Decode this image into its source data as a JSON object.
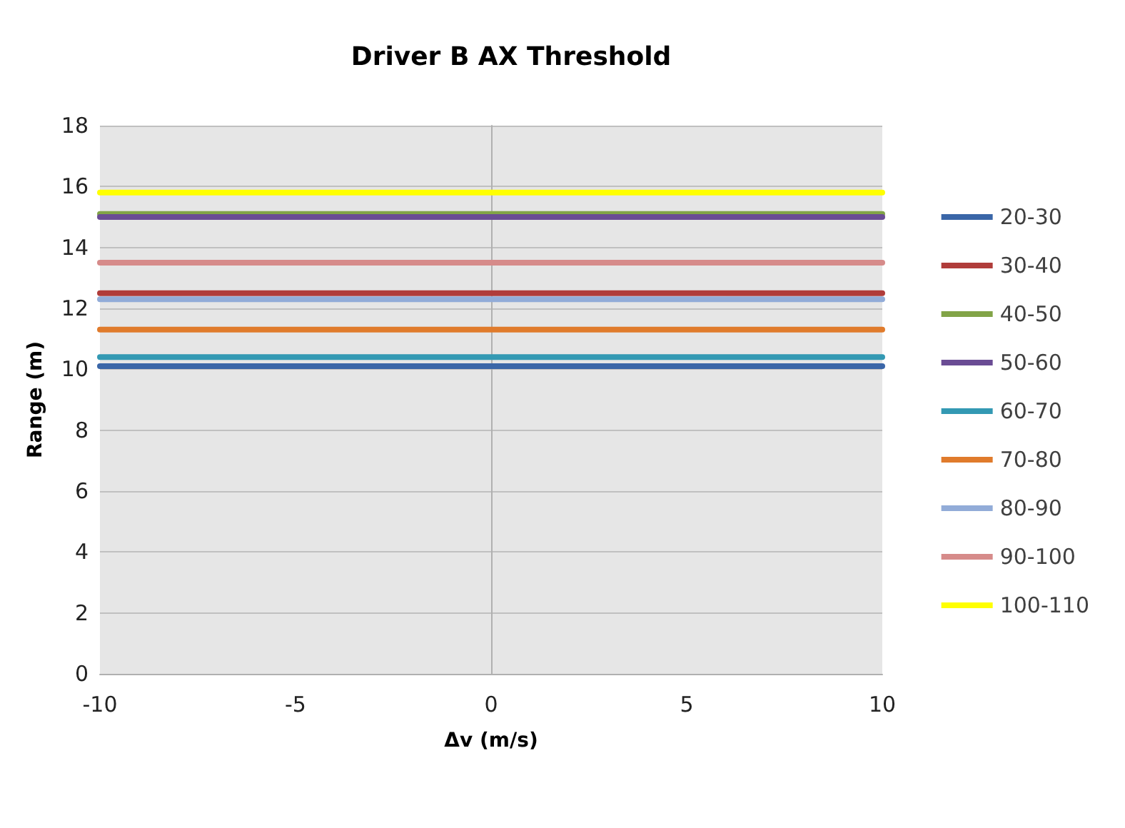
{
  "chart_data": {
    "type": "line",
    "title": "Driver B AX Threshold",
    "xlabel": "Δv (m/s)",
    "ylabel": "Range (m)",
    "x": [
      -10,
      10
    ],
    "xlim": [
      -10,
      10
    ],
    "xticks": [
      -10,
      -5,
      0,
      5,
      10
    ],
    "ylim": [
      0,
      18
    ],
    "yticks": [
      0,
      2,
      4,
      6,
      8,
      10,
      12,
      14,
      16,
      18
    ],
    "grid": true,
    "legend": "right",
    "marker": "none",
    "line_style": "solid",
    "series": [
      {
        "name": "20-30",
        "color": "#3a66a8",
        "values": [
          10.1,
          10.1
        ]
      },
      {
        "name": "30-40",
        "color": "#b03c3a",
        "values": [
          12.5,
          12.5
        ]
      },
      {
        "name": "40-50",
        "color": "#82a447",
        "values": [
          15.1,
          15.1
        ]
      },
      {
        "name": "50-60",
        "color": "#6a4c94",
        "values": [
          15.0,
          15.0
        ]
      },
      {
        "name": "60-70",
        "color": "#3399b3",
        "values": [
          10.4,
          10.4
        ]
      },
      {
        "name": "70-80",
        "color": "#e07b2c",
        "values": [
          11.3,
          11.3
        ]
      },
      {
        "name": "80-90",
        "color": "#92acd8",
        "values": [
          12.3,
          12.3
        ]
      },
      {
        "name": "90-100",
        "color": "#d68b8a",
        "values": [
          13.5,
          13.5
        ]
      },
      {
        "name": "100-110",
        "color": "#ffff00",
        "values": [
          15.8,
          15.8
        ]
      }
    ]
  }
}
